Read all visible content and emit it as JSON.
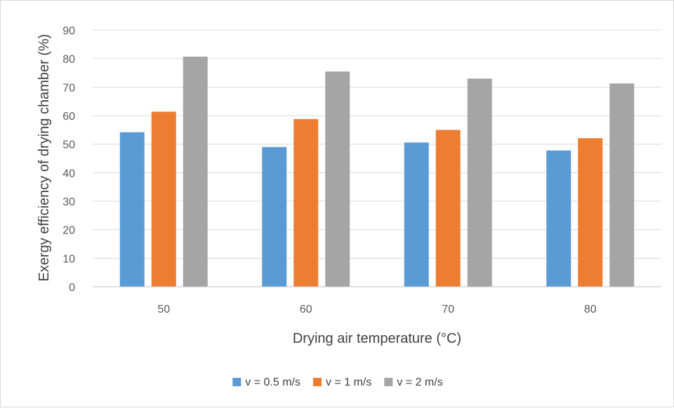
{
  "chart_data": {
    "type": "bar",
    "title": "",
    "xlabel": "Drying air temperature (°C)",
    "ylabel": "Exergy efficiency of drying chamber (%)",
    "categories": [
      "50",
      "60",
      "70",
      "80"
    ],
    "ylim": [
      0,
      90
    ],
    "yticks": [
      "0",
      "10",
      "20",
      "30",
      "40",
      "50",
      "60",
      "70",
      "80",
      "90"
    ],
    "grid": true,
    "legend_position": "bottom",
    "series": [
      {
        "name": "v = 0.5 m/s",
        "color": "#5b9bd5",
        "values": [
          54.2,
          49.0,
          50.6,
          47.8
        ]
      },
      {
        "name": "v = 1 m/s",
        "color": "#ed7d31",
        "values": [
          61.4,
          58.8,
          55.0,
          52.1
        ]
      },
      {
        "name": "v = 2 m/s",
        "color": "#a5a5a5",
        "values": [
          80.7,
          75.5,
          73.0,
          71.3
        ]
      }
    ]
  }
}
